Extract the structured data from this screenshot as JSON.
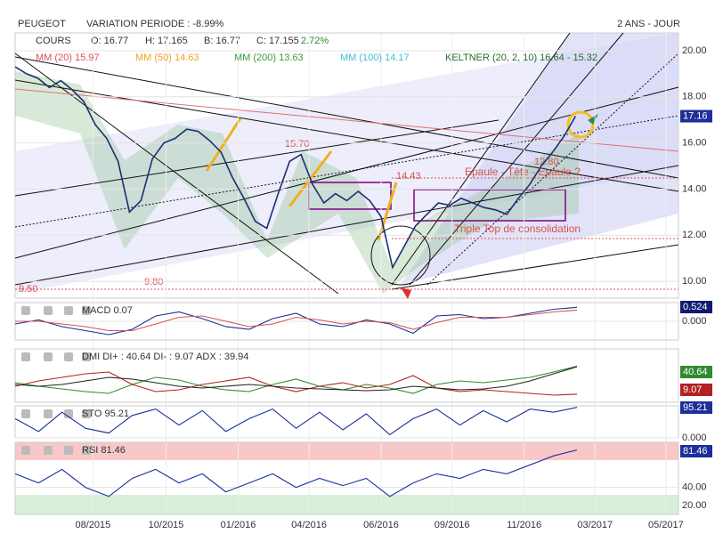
{
  "header": {
    "title": "PEUGEOT",
    "variation": "VARIATION PERIODE : -8.99%",
    "period": "2 ANS - JOUR"
  },
  "chart_data": [
    {
      "type": "line",
      "ohlc": [
        "O: 16.77",
        "H: 17.165",
        "B: 16.77",
        "C: 17.155"
      ],
      "change": "2.72%",
      "indicators": [
        {
          "name": "MM (20) 15.97",
          "color": "#d9534f"
        },
        {
          "name": "MM (50) 14.63",
          "color": "#f0a020"
        },
        {
          "name": "MM (200) 13.63",
          "color": "#3c9a3c"
        },
        {
          "name": "MM (100) 14.17",
          "color": "#40c0d0"
        },
        {
          "name": "KELTNER (20, 2, 10) 16.64 - 15.32",
          "color": "#2a6e2a"
        }
      ],
      "annotations": [
        "15.70",
        "14.43",
        "12.80",
        "9.50",
        "9.80",
        "Epaule - Tête - Epaule ?",
        "Triple Top de consolidation"
      ],
      "series": [
        {
          "name": "COURS",
          "color": "#1c2f70",
          "values": [
            19.3,
            19.0,
            18.8,
            18.4,
            18.7,
            18.3,
            17.8,
            16.8,
            16.2,
            15.2,
            13.0,
            13.5,
            15.3,
            16.0,
            16.2,
            16.6,
            16.5,
            16.1,
            15.6,
            14.5,
            13.6,
            12.6,
            12.3,
            13.8,
            15.2,
            15.5,
            14.2,
            13.4,
            13.8,
            13.5,
            13.9,
            13.5,
            12.8,
            10.6,
            11.5,
            12.4,
            12.9,
            13.4,
            13.3,
            13.6,
            13.4,
            13.2,
            13.1,
            12.9,
            13.6,
            14.2,
            15.0,
            15.6,
            16.3,
            17.16
          ]
        }
      ],
      "xlim": [
        0,
        58
      ],
      "xticks": [
        {
          "value": 6.8,
          "label": "08/2015"
        },
        {
          "value": 13.2,
          "label": "10/2015"
        },
        {
          "value": 19.5,
          "label": "01/2016"
        },
        {
          "value": 25.7,
          "label": "04/2016"
        },
        {
          "value": 32.0,
          "label": "06/2016"
        },
        {
          "value": 38.2,
          "label": "09/2016"
        },
        {
          "value": 44.5,
          "label": "11/2016"
        },
        {
          "value": 50.7,
          "label": "03/2017"
        },
        {
          "value": 56.9,
          "label": "05/2017"
        }
      ],
      "ylim": [
        9.27,
        20.77
      ],
      "yticks": [
        {
          "value": 10,
          "label": "10.00"
        },
        {
          "value": 12,
          "label": "12.00"
        },
        {
          "value": 14,
          "label": "14.00"
        },
        {
          "value": 16,
          "label": "16.00"
        },
        {
          "value": 18,
          "label": "18.00"
        },
        {
          "value": 20,
          "label": "20.00"
        }
      ]
    },
    {
      "type": "line",
      "title": "MACD 0.07",
      "series": [
        {
          "color": "#1c2f9a",
          "values": [
            -0.1,
            0.05,
            -0.2,
            -0.35,
            -0.5,
            -0.3,
            0.2,
            0.35,
            0.1,
            -0.2,
            -0.3,
            0.1,
            0.3,
            -0.1,
            -0.2,
            0.05,
            -0.1,
            -0.45,
            0.2,
            0.25,
            0.1,
            0.15,
            0.3,
            0.45,
            0.524
          ]
        },
        {
          "color": "#d9534f",
          "values": [
            0,
            0,
            -0.1,
            -0.2,
            -0.35,
            -0.35,
            -0.1,
            0.15,
            0.2,
            0,
            -0.2,
            -0.1,
            0.15,
            0.05,
            -0.1,
            0,
            -0.05,
            -0.3,
            -0.05,
            0.15,
            0.15,
            0.15,
            0.25,
            0.35,
            0.42
          ]
        }
      ],
      "ylim": [
        -0.7,
        0.7
      ],
      "yticks": [
        {
          "value": 0,
          "label": "0.000"
        }
      ]
    },
    {
      "type": "line",
      "title": "DMI DI+ : 40.64 DI- : 9.07 ADX : 39.94",
      "series": [
        {
          "color": "#2e8b2e",
          "values": [
            22,
            18,
            15,
            12,
            10,
            20,
            28,
            25,
            18,
            14,
            12,
            20,
            26,
            18,
            14,
            20,
            16,
            10,
            20,
            24,
            22,
            25,
            28,
            34,
            40.64
          ]
        },
        {
          "color": "#b22222",
          "values": [
            18,
            24,
            28,
            32,
            34,
            20,
            12,
            14,
            20,
            24,
            28,
            18,
            12,
            18,
            22,
            16,
            20,
            30,
            16,
            12,
            14,
            12,
            10,
            8,
            9.07
          ]
        },
        {
          "color": "#222222",
          "values": [
            20,
            18,
            20,
            24,
            28,
            26,
            22,
            18,
            16,
            18,
            20,
            18,
            16,
            15,
            14,
            13,
            14,
            18,
            16,
            14,
            15,
            18,
            24,
            32,
            39.94
          ]
        }
      ],
      "ylim": [
        0,
        60
      ],
      "yticks": []
    },
    {
      "type": "line",
      "title": "STO 95.21",
      "series": [
        {
          "color": "#1c2f9a",
          "values": [
            60,
            20,
            80,
            30,
            15,
            70,
            90,
            40,
            85,
            20,
            60,
            90,
            30,
            80,
            25,
            75,
            10,
            60,
            90,
            40,
            85,
            50,
            90,
            80,
            95.21
          ]
        }
      ],
      "ylim": [
        0,
        100
      ],
      "yticks": [
        {
          "value": 0,
          "label": "0.000"
        }
      ]
    },
    {
      "type": "line",
      "title": "RSI 81.46",
      "series": [
        {
          "color": "#1c2f9a",
          "values": [
            55,
            45,
            60,
            40,
            30,
            50,
            60,
            45,
            55,
            35,
            45,
            55,
            40,
            50,
            42,
            50,
            30,
            45,
            55,
            50,
            60,
            55,
            65,
            75,
            81.46
          ]
        }
      ],
      "ylim": [
        10,
        90
      ],
      "yticks": [
        {
          "value": 20,
          "label": "20.00"
        },
        {
          "value": 40,
          "label": "40.00"
        }
      ]
    }
  ]
}
